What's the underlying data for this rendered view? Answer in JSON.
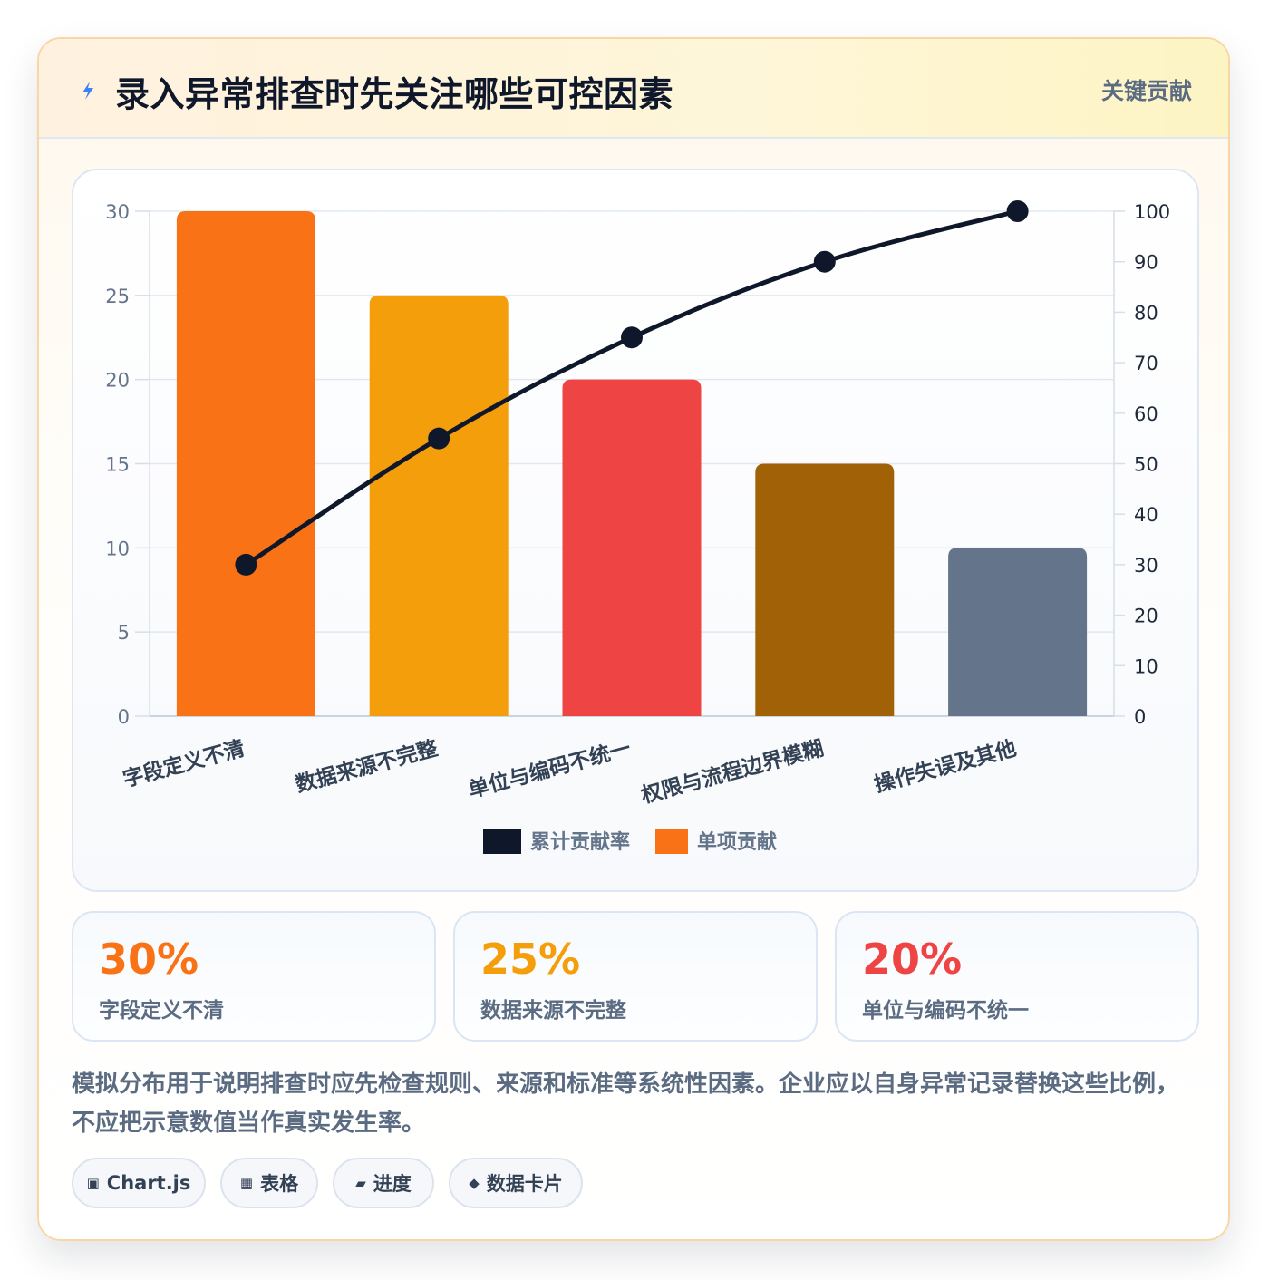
{
  "header": {
    "title": "录入异常排查时先关注哪些可控因素",
    "badge": "关键贡献"
  },
  "chart_data": {
    "type": "bar",
    "categories": [
      "字段定义不清",
      "数据来源不完整",
      "单位与编码不统一",
      "权限与流程边界模糊",
      "操作失误及其他"
    ],
    "series": [
      {
        "name": "单项贡献",
        "type": "bar",
        "axis": "left",
        "values": [
          30,
          25,
          20,
          15,
          10
        ],
        "colors": [
          "#f97316",
          "#f59e0b",
          "#ef4444",
          "#a16207",
          "#64748b"
        ]
      },
      {
        "name": "累计贡献率",
        "type": "line",
        "axis": "right",
        "values": [
          30,
          55,
          75,
          90,
          100
        ],
        "color": "#0f172a"
      }
    ],
    "ylim": [
      0,
      30
    ],
    "yticks": [
      "0",
      "5",
      "10",
      "15",
      "20",
      "25",
      "30"
    ],
    "y2lim": [
      0,
      100
    ],
    "y2ticks": [
      "0",
      "10",
      "20",
      "30",
      "40",
      "50",
      "60",
      "70",
      "80",
      "90",
      "100"
    ],
    "legend": [
      "累计贡献率",
      "单项贡献"
    ],
    "legend_position": "bottom",
    "grid": true
  },
  "stats": [
    {
      "value": "30%",
      "label": "字段定义不清",
      "color": "#f97316"
    },
    {
      "value": "25%",
      "label": "数据来源不完整",
      "color": "#f59e0b"
    },
    {
      "value": "20%",
      "label": "单位与编码不统一",
      "color": "#ef4444"
    }
  ],
  "note": "模拟分布用于说明排查时应先检查规则、来源和标准等系统性因素。企业应以自身异常记录替换这些比例，不应把示意数值当作真实发生率。",
  "tags": [
    {
      "icon": "▣",
      "label": "Chart.js"
    },
    {
      "icon": "▦",
      "label": "表格"
    },
    {
      "icon": "▰",
      "label": "进度"
    },
    {
      "icon": "◆",
      "label": "数据卡片"
    }
  ]
}
